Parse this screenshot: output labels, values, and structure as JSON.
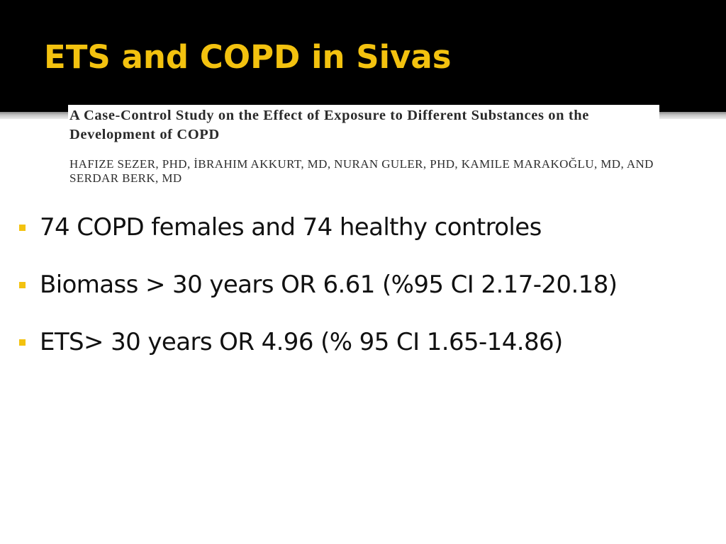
{
  "slide": {
    "title": "ETS and COPD in Sivas"
  },
  "paper": {
    "title": "A Case-Control Study on the Effect of Exposure to Different Substances on the Development of COPD",
    "authors": "HAFIZE SEZER, PhD, İBRAHIM AKKURT, MD, NURAN GULER, PhD, KAMILE MARAKOĞLU, MD, AND SERDAR BERK, MD"
  },
  "bullets": [
    {
      "text": "74 COPD females and 74 healthy controles"
    },
    {
      "text": "Biomass > 30 years OR 6.61 (%95 CI 2.17-20.18)"
    },
    {
      "text": "ETS> 30 years OR 4.96 (% 95 CI 1.65-14.86)"
    }
  ],
  "colors": {
    "title_band": "#000000",
    "title_text": "#f3c20f",
    "bullet_marker": "#f3c20f",
    "body_text": "#111111"
  }
}
